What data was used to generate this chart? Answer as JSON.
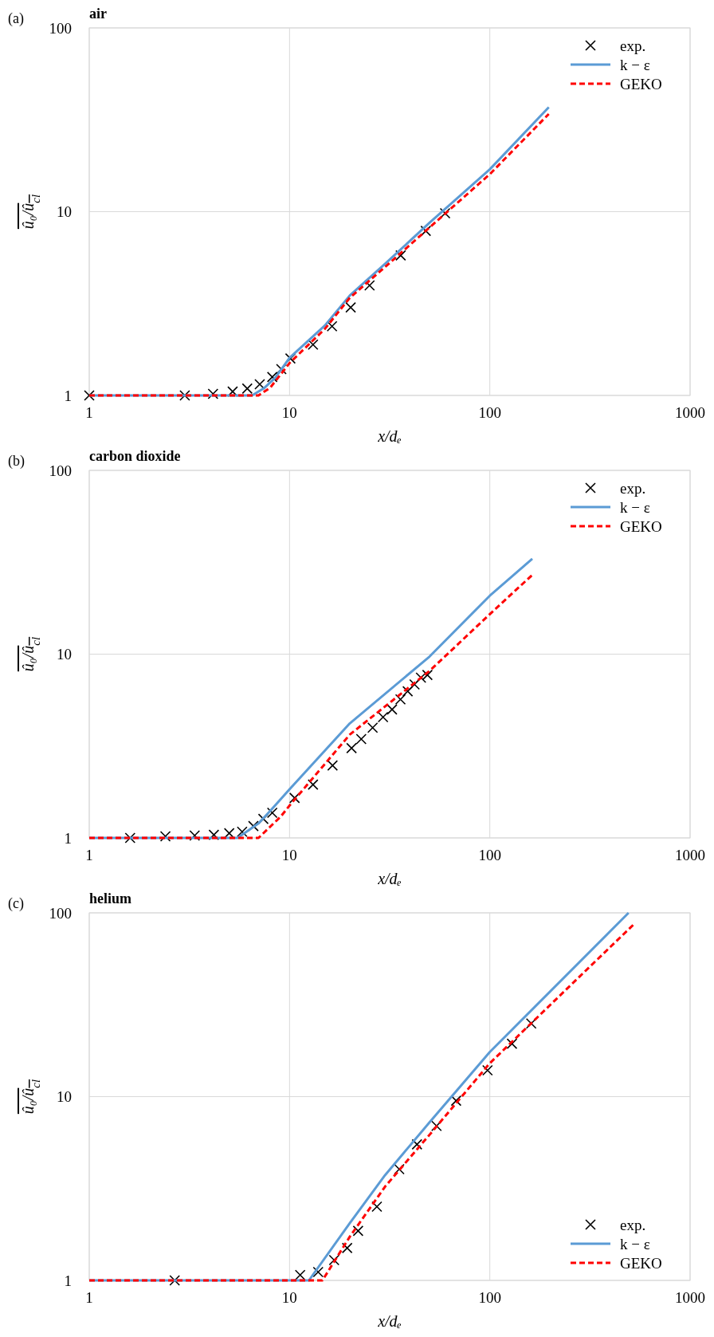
{
  "chart_data": [
    {
      "type": "line",
      "title": "air",
      "annotations": [
        "(a)"
      ],
      "xlabel": "x/dₑ",
      "ylabel": "û₀/û$_{cl}$",
      "log": "xy",
      "xlim": [
        1,
        1000
      ],
      "ylim": [
        1,
        100
      ],
      "xticks": [
        1,
        10,
        100,
        1000
      ],
      "yticks": [
        1,
        10,
        100
      ],
      "grid": true,
      "legend": "top right",
      "series": [
        {
          "name": "exp.",
          "type": "scatter",
          "marker": "cross",
          "color": "#000000",
          "x": [
            1,
            3,
            4.15,
            5.2,
            6.15,
            7.1,
            8.2,
            9.1,
            10.1,
            13.1,
            16.3,
            20.2,
            25.1,
            35.9,
            47.9,
            59.8
          ],
          "values": [
            1,
            1,
            1.02,
            1.05,
            1.09,
            1.15,
            1.26,
            1.39,
            1.59,
            1.89,
            2.38,
            3.01,
            3.97,
            5.78,
            7.86,
            9.8
          ]
        },
        {
          "name": "k − ε",
          "line_style": "solid",
          "color": "#5b9bd5",
          "x": [
            1,
            6.5,
            7.5,
            8.5,
            10,
            15,
            20,
            30,
            50,
            100,
            197
          ],
          "values": [
            1,
            1,
            1.1,
            1.25,
            1.6,
            2.4,
            3.5,
            5.2,
            8.7,
            17,
            37
          ]
        },
        {
          "name": "GEKO",
          "line_style": "dashed",
          "color": "#ff0000",
          "x": [
            1,
            7,
            8,
            10,
            15,
            20,
            30,
            50,
            100,
            197
          ],
          "values": [
            1,
            1,
            1.1,
            1.5,
            2.3,
            3.4,
            5,
            8.2,
            16,
            34
          ]
        }
      ]
    },
    {
      "type": "line",
      "title": "carbon dioxide",
      "annotations": [
        "(b)"
      ],
      "xlabel": "x/dₑ",
      "ylabel": "û₀/û$_{cl}$",
      "log": "xy",
      "xlim": [
        1,
        1000
      ],
      "ylim": [
        1,
        100
      ],
      "xticks": [
        1,
        10,
        100,
        1000
      ],
      "yticks": [
        1,
        10,
        100
      ],
      "grid": true,
      "legend": "top right",
      "series": [
        {
          "name": "exp.",
          "type": "scatter",
          "marker": "cross",
          "color": "#000000",
          "x": [
            1.6,
            2.4,
            3.36,
            4.19,
            5,
            5.8,
            6.6,
            7.4,
            8.2,
            10.6,
            13.1,
            16.4,
            20.4,
            22.8,
            26,
            29.3,
            32.5,
            35.8,
            38.9,
            42.1,
            45.3,
            48.8
          ],
          "values": [
            1,
            1.02,
            1.03,
            1.04,
            1.06,
            1.08,
            1.16,
            1.27,
            1.37,
            1.65,
            1.95,
            2.48,
            3.08,
            3.45,
            3.98,
            4.54,
            5,
            5.67,
            6.28,
            6.84,
            7.45,
            7.7
          ]
        },
        {
          "name": "k − ε",
          "line_style": "solid",
          "color": "#5b9bd5",
          "x": [
            1,
            5.5,
            7,
            8,
            10,
            20,
            50,
            100,
            163
          ],
          "values": [
            1,
            1,
            1.2,
            1.4,
            1.84,
            4.2,
            9.7,
            20.8,
            33
          ]
        },
        {
          "name": "GEKO",
          "line_style": "dashed",
          "color": "#ff0000",
          "x": [
            1,
            7,
            8,
            9,
            10,
            20,
            50,
            100,
            163
          ],
          "values": [
            1,
            1,
            1.15,
            1.3,
            1.5,
            3.65,
            8.1,
            16.5,
            27
          ]
        }
      ]
    },
    {
      "type": "line",
      "title": "helium",
      "annotations": [
        "(c)"
      ],
      "xlabel": "x/dₑ",
      "ylabel": "û₀/û$_{cl}$",
      "log": "xy",
      "xlim": [
        1,
        1000
      ],
      "ylim": [
        1,
        100
      ],
      "xticks": [
        1,
        10,
        100,
        1000
      ],
      "yticks": [
        1,
        10,
        100
      ],
      "grid": true,
      "legend": "bottom right",
      "series": [
        {
          "name": "exp.",
          "type": "scatter",
          "marker": "cross",
          "color": "#000000",
          "x": [
            2.67,
            11.3,
            13.9,
            16.7,
            19.4,
            22,
            27.3,
            35.3,
            43.3,
            54.2,
            67.9,
            97.4,
            129,
            161
          ],
          "values": [
            1,
            1.07,
            1.11,
            1.29,
            1.5,
            1.86,
            2.52,
            4.03,
            5.5,
            6.93,
            9.5,
            13.9,
            19.4,
            25
          ]
        },
        {
          "name": "k − ε",
          "line_style": "solid",
          "color": "#5b9bd5",
          "x": [
            1,
            12.5,
            20,
            30,
            50,
            100,
            493
          ],
          "values": [
            1,
            1,
            2.05,
            3.74,
            7.25,
            17.5,
            100
          ]
        },
        {
          "name": "GEKO",
          "line_style": "dashed",
          "color": "#ff0000",
          "x": [
            1,
            14.6,
            20,
            30,
            50,
            100,
            525
          ],
          "values": [
            1,
            1,
            1.73,
            3.24,
            6.2,
            15.2,
            86.9
          ]
        }
      ]
    }
  ]
}
